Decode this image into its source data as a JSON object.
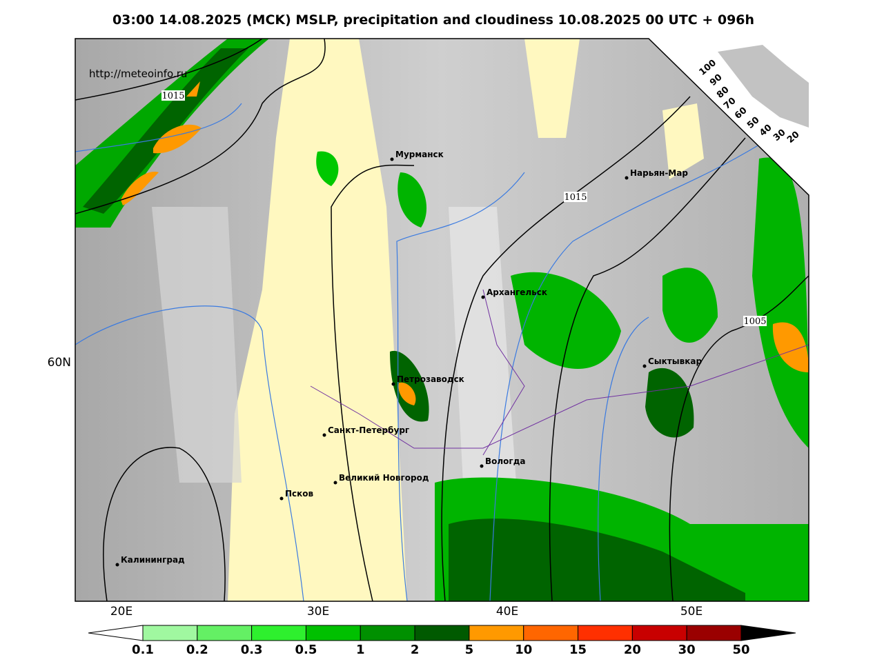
{
  "title": "03:00 14.08.2025 (MCK) MSLP, precipitation and cloudiness 10.08.2025 00 UTC + 096h",
  "url": "http://meteoinfo.ru",
  "isobar_labels": [
    "1015",
    "1015",
    "1005"
  ],
  "cities": [
    "Мурманск",
    "Нарьян-Мар",
    "Архангельск",
    "Сыктывкар",
    "Петрозаводск",
    "Санкт-Петербург",
    "Вологда",
    "Великий Новгород",
    "Псков",
    "Калининград"
  ],
  "lon_labels": [
    "20E",
    "30E",
    "40E",
    "50E"
  ],
  "lat_labels": [
    "60N"
  ],
  "cloud_scale_labels": [
    "100",
    "90",
    "80",
    "70",
    "60",
    "50",
    "40",
    "30",
    "20"
  ],
  "colorbar": {
    "labels": [
      "0.1",
      "0.2",
      "0.3",
      "0.5",
      "1",
      "2",
      "5",
      "10",
      "15",
      "20",
      "30",
      "50"
    ],
    "colors": [
      "#a0f8a0",
      "#64f064",
      "#2ef02e",
      "#00c000",
      "#009000",
      "#005a00",
      "#ff9900",
      "#ff6600",
      "#ff3000",
      "#c80000",
      "#9a0000"
    ]
  }
}
